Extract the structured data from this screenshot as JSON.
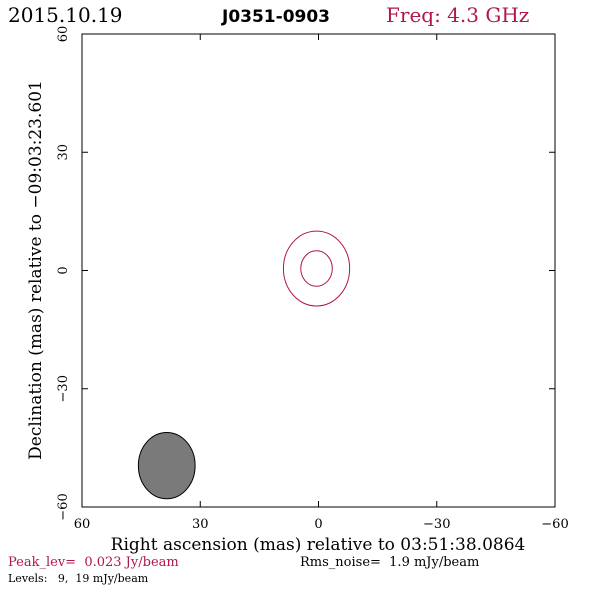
{
  "header": {
    "date": "2015.10.19",
    "source": "J0351-0903",
    "freq": "Freq: 4.3 GHz"
  },
  "footer": {
    "peak": "Peak_lev=  0.023 Jy/beam",
    "rms": "Rms_noise=  1.9 mJy/beam",
    "levels": "Levels:   9,  19 mJy/beam"
  },
  "colors": {
    "accent": "#b0174b",
    "frame": "#000000",
    "beam_fill": "#7a7a7a"
  },
  "chart_data": {
    "type": "contour",
    "xlabel": "Right ascension (mas) relative to 03:51:38.0864",
    "ylabel": "Declination (mas) relative to −09:03:23.601",
    "xlim": [
      60,
      -60
    ],
    "ylim": [
      -60,
      60
    ],
    "x_ticks": [
      60,
      30,
      0,
      -30,
      -60
    ],
    "y_ticks": [
      60,
      30,
      0,
      -30,
      -60
    ],
    "x_tick_labels": [
      "60",
      "30",
      "0",
      "−30",
      "−60"
    ],
    "y_tick_labels": [
      "60",
      "30",
      "0",
      "−30",
      "−60"
    ],
    "contour_levels_mJy": [
      9,
      19
    ],
    "contours": [
      {
        "level": 9,
        "cx": 0.5,
        "cy": 0.5,
        "semi_x": 8.4,
        "semi_y": 9.5
      },
      {
        "level": 19,
        "cx": 0.5,
        "cy": 0.5,
        "semi_x": 4.0,
        "semi_y": 4.5
      }
    ],
    "beam": {
      "cx": 38.5,
      "cy": -49.5,
      "semi_x": 7.2,
      "semi_y": 8.4
    }
  }
}
